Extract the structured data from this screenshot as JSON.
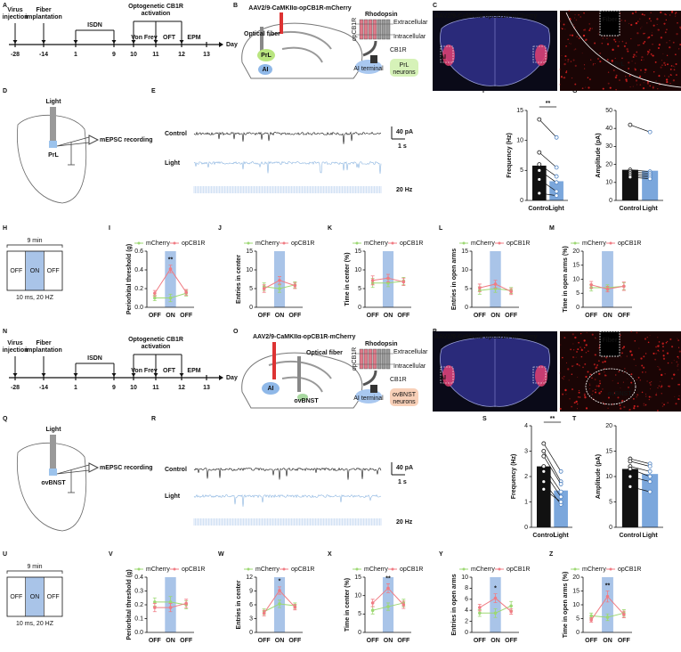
{
  "letters": [
    "A",
    "B",
    "C",
    "D",
    "E",
    "F",
    "G",
    "H",
    "I",
    "J",
    "K",
    "L",
    "M",
    "N",
    "O",
    "P",
    "Q",
    "R",
    "S",
    "T",
    "U",
    "V",
    "W",
    "X",
    "Y",
    "Z"
  ],
  "timelines": [
    {
      "labels": [
        "Virus injection",
        "Fiber implantation",
        "ISDN",
        "Optogenetic CB1R activation",
        "Von Frey",
        "OFT",
        "EPM"
      ],
      "days": [
        -28,
        -14,
        1,
        9,
        10,
        11,
        12,
        13
      ],
      "axis_label": "Day"
    },
    {
      "labels": [
        "Virus injection",
        "Fiber implantation",
        "ISDN",
        "Optogenetic CB1R activation",
        "Von Frey",
        "OFT",
        "EPM"
      ],
      "days": [
        -28,
        -14,
        1,
        9,
        10,
        11,
        12,
        13
      ],
      "axis_label": "Day"
    }
  ],
  "virus_diagrams": [
    {
      "virus": "AAV2/9-CaMKIIα-opCB1R-mCherry",
      "fiber": "Optical fiber",
      "region": "PrL",
      "source": "AI",
      "rhodopsin": "Rhodopsin",
      "extracellular": "Extracellular",
      "intracellular": "Intracellular",
      "receptor": "opCB1R",
      "cb1r": "CB1R",
      "terminal": "AI terminal",
      "target": "PrL neurons"
    },
    {
      "virus": "AAV2/9-CaMKIIα-opCB1R-mCherry",
      "fiber": "Optical fiber",
      "region": "ovBNST",
      "source": "AI",
      "rhodopsin": "Rhodopsin",
      "extracellular": "Extracellular",
      "intracellular": "Intracellular",
      "receptor": "opCB1R",
      "cb1r": "CB1R",
      "terminal": "AI terminal",
      "target": "ovBNST neurons"
    }
  ],
  "histology": [
    {
      "virus": "AAV2/9-CaMKIIα-opCB1R-mCherry",
      "ai": "AI",
      "fiber": "Fiber",
      "region": "PrL"
    },
    {
      "virus": "AAV2/9-CaMKIIα-opCB1R-mCherry",
      "ai": "AI",
      "fiber": "Fiber",
      "region": "ovBNST"
    }
  ],
  "recording_diagrams": [
    {
      "light": "Light",
      "region": "PrL",
      "recording": "mEPSC recording"
    },
    {
      "light": "Light",
      "region": "ovBNST",
      "recording": "mEPSC recording"
    }
  ],
  "traces": [
    {
      "rows": [
        "Control",
        "Light"
      ],
      "stim": "20 Hz",
      "scale_y": "40 pA",
      "scale_x": "1 s"
    },
    {
      "rows": [
        "Control",
        "Light"
      ],
      "stim": "20 Hz",
      "scale_y": "40 pA",
      "scale_x": "1 s"
    }
  ],
  "protocols": [
    {
      "duration": "9 min",
      "phases": [
        "OFF",
        "ON",
        "OFF"
      ],
      "stim": "10 ms, 20 HZ"
    },
    {
      "duration": "9 min",
      "phases": [
        "OFF",
        "ON",
        "OFF"
      ],
      "stim": "10 ms, 20 HZ"
    }
  ],
  "chart_data": [
    {
      "type": "bar",
      "ylabel": "Frequency (Hz)",
      "categories": [
        "Control",
        "Light"
      ],
      "values": [
        5.8,
        3.2
      ],
      "colors": [
        "#111111",
        "#7ba7dc"
      ],
      "pairs": [
        [
          13.5,
          10.5
        ],
        [
          8,
          5.5
        ],
        [
          6,
          4
        ],
        [
          5,
          3
        ],
        [
          3.5,
          1.5
        ],
        [
          1.2,
          0.8
        ]
      ],
      "ylim": [
        0,
        15
      ],
      "yticks": [
        0,
        5,
        10,
        15
      ],
      "significance": "**"
    },
    {
      "type": "bar",
      "ylabel": "Amplitude (pA)",
      "categories": [
        "Control",
        "Light"
      ],
      "values": [
        17,
        16.5
      ],
      "colors": [
        "#111111",
        "#7ba7dc"
      ],
      "pairs": [
        [
          42,
          38
        ],
        [
          17,
          16
        ],
        [
          16,
          15
        ],
        [
          15,
          14
        ],
        [
          14,
          13
        ],
        [
          13,
          12
        ]
      ],
      "ylim": [
        0,
        50
      ],
      "yticks": [
        0,
        10,
        20,
        30,
        40,
        50
      ]
    },
    {
      "type": "line",
      "ylabel": "Periorbital threshold (g)",
      "categories": [
        "OFF",
        "ON",
        "OFF"
      ],
      "series": [
        {
          "name": "mCherry",
          "color": "#9dd873",
          "values": [
            0.1,
            0.1,
            0.15
          ],
          "errors": [
            0.03,
            0.04,
            0.03
          ]
        },
        {
          "name": "opCB1R",
          "color": "#f07c84",
          "values": [
            0.15,
            0.41,
            0.16
          ],
          "errors": [
            0.03,
            0.04,
            0.03
          ]
        }
      ],
      "ylim": [
        0,
        0.6
      ],
      "yticks": [
        {
          "value": 0,
          "label": "0.0"
        },
        0.2,
        0.4,
        0.6
      ],
      "significance": "**"
    },
    {
      "type": "line",
      "ylabel": "Entries in center",
      "categories": [
        "OFF",
        "ON",
        "OFF"
      ],
      "series": [
        {
          "name": "mCherry",
          "color": "#9dd873",
          "values": [
            5.5,
            5,
            6
          ],
          "errors": [
            1,
            1,
            0.8
          ]
        },
        {
          "name": "opCB1R",
          "color": "#f07c84",
          "values": [
            5,
            7.2,
            5.8
          ],
          "errors": [
            1,
            1,
            0.8
          ]
        }
      ],
      "ylim": [
        0,
        15
      ],
      "yticks": [
        0,
        5,
        10,
        15
      ]
    },
    {
      "type": "line",
      "ylabel": "Time in center (%)",
      "categories": [
        "OFF",
        "ON",
        "OFF"
      ],
      "series": [
        {
          "name": "mCherry",
          "color": "#9dd873",
          "values": [
            6.5,
            6.5,
            7
          ],
          "errors": [
            1.2,
            1,
            1
          ]
        },
        {
          "name": "opCB1R",
          "color": "#f07c84",
          "values": [
            7.2,
            7.8,
            6.8
          ],
          "errors": [
            1.2,
            1,
            1
          ]
        }
      ],
      "ylim": [
        0,
        15
      ],
      "yticks": [
        0,
        5,
        10,
        15
      ]
    },
    {
      "type": "line",
      "ylabel": "Entries in open arms",
      "categories": [
        "OFF",
        "ON",
        "OFF"
      ],
      "series": [
        {
          "name": "mCherry",
          "color": "#9dd873",
          "values": [
            4.5,
            5,
            4.5
          ],
          "errors": [
            1,
            1,
            0.8
          ]
        },
        {
          "name": "opCB1R",
          "color": "#f07c84",
          "values": [
            5.2,
            6.2,
            4.2
          ],
          "errors": [
            1,
            1,
            0.8
          ]
        }
      ],
      "ylim": [
        0,
        15
      ],
      "yticks": [
        0,
        5,
        10,
        15
      ]
    },
    {
      "type": "line",
      "ylabel": "Time in open arms (%)",
      "categories": [
        "OFF",
        "ON",
        "OFF"
      ],
      "series": [
        {
          "name": "mCherry",
          "color": "#9dd873",
          "values": [
            7,
            7,
            7.5
          ],
          "errors": [
            1.2,
            1,
            1.2
          ]
        },
        {
          "name": "opCB1R",
          "color": "#f07c84",
          "values": [
            8,
            6.5,
            7.5
          ],
          "errors": [
            1.2,
            1,
            1.5
          ]
        }
      ],
      "ylim": [
        0,
        20
      ],
      "yticks": [
        0,
        5,
        10,
        15,
        20
      ]
    },
    {
      "type": "bar",
      "ylabel": "Frequency (Hz)",
      "categories": [
        "Control",
        "Light"
      ],
      "values": [
        2.4,
        1.45
      ],
      "colors": [
        "#111111",
        "#7ba7dc"
      ],
      "pairs": [
        [
          3.3,
          2.2
        ],
        [
          3,
          1.8
        ],
        [
          2.8,
          1.7
        ],
        [
          2.4,
          1.4
        ],
        [
          2.2,
          1.2
        ],
        [
          1.8,
          0.9
        ],
        [
          1.5,
          1
        ]
      ],
      "ylim": [
        0,
        4
      ],
      "yticks": [
        0,
        1,
        2,
        3,
        4
      ],
      "significance": "**"
    },
    {
      "type": "bar",
      "ylabel": "Amplitude (pA)",
      "categories": [
        "Control",
        "Light"
      ],
      "values": [
        11.5,
        10.5
      ],
      "colors": [
        "#111111",
        "#7ba7dc"
      ],
      "pairs": [
        [
          13.5,
          12.5
        ],
        [
          13,
          12
        ],
        [
          12,
          11
        ],
        [
          11.5,
          10
        ],
        [
          10,
          9
        ],
        [
          8,
          7
        ]
      ],
      "ylim": [
        0,
        20
      ],
      "yticks": [
        0,
        5,
        10,
        15,
        20
      ]
    },
    {
      "type": "line",
      "ylabel": "Periorbital threshold (g)",
      "categories": [
        "OFF",
        "ON",
        "OFF"
      ],
      "series": [
        {
          "name": "mCherry",
          "color": "#9dd873",
          "values": [
            0.22,
            0.22,
            0.2
          ],
          "errors": [
            0.03,
            0.04,
            0.03
          ]
        },
        {
          "name": "opCB1R",
          "color": "#f07c84",
          "values": [
            0.18,
            0.18,
            0.21
          ],
          "errors": [
            0.03,
            0.03,
            0.03
          ]
        }
      ],
      "ylim": [
        0,
        0.4
      ],
      "yticks": [
        {
          "value": 0,
          "label": "0.0"
        },
        0.1,
        0.2,
        0.3,
        0.4
      ]
    },
    {
      "type": "line",
      "ylabel": "Entries in center",
      "categories": [
        "OFF",
        "ON",
        "OFF"
      ],
      "series": [
        {
          "name": "mCherry",
          "color": "#9dd873",
          "values": [
            4.5,
            6.2,
            5.8
          ],
          "errors": [
            0.6,
            0.8,
            0.6
          ]
        },
        {
          "name": "opCB1R",
          "color": "#f07c84",
          "values": [
            4.2,
            9.1,
            5.5
          ],
          "errors": [
            0.6,
            0.8,
            0.6
          ]
        }
      ],
      "ylim": [
        0,
        12
      ],
      "yticks": [
        0,
        3,
        6,
        9,
        12
      ],
      "significance": "*"
    },
    {
      "type": "line",
      "ylabel": "Time in center (%)",
      "categories": [
        "OFF",
        "ON",
        "OFF"
      ],
      "series": [
        {
          "name": "mCherry",
          "color": "#9dd873",
          "values": [
            6,
            7,
            8
          ],
          "errors": [
            1,
            1,
            1
          ]
        },
        {
          "name": "opCB1R",
          "color": "#f07c84",
          "values": [
            8,
            12,
            7.5
          ],
          "errors": [
            1,
            1.2,
            1
          ]
        }
      ],
      "ylim": [
        0,
        15
      ],
      "yticks": [
        0,
        5,
        10,
        15
      ],
      "significance": "**"
    },
    {
      "type": "line",
      "ylabel": "Entries in open arms",
      "categories": [
        "OFF",
        "ON",
        "OFF"
      ],
      "series": [
        {
          "name": "mCherry",
          "color": "#9dd873",
          "values": [
            3.5,
            3.5,
            4.8
          ],
          "errors": [
            0.6,
            0.8,
            0.8
          ]
        },
        {
          "name": "opCB1R",
          "color": "#f07c84",
          "values": [
            4.5,
            6.2,
            3.8
          ],
          "errors": [
            0.6,
            0.8,
            0.5
          ]
        }
      ],
      "ylim": [
        0,
        10
      ],
      "yticks": [
        0,
        2,
        4,
        6,
        8,
        10
      ],
      "significance": "*"
    },
    {
      "type": "line",
      "ylabel": "Time in open arms (%)",
      "categories": [
        "OFF",
        "ON",
        "OFF"
      ],
      "series": [
        {
          "name": "mCherry",
          "color": "#9dd873",
          "values": [
            6,
            5.5,
            7
          ],
          "errors": [
            1,
            1.2,
            1.2
          ]
        },
        {
          "name": "opCB1R",
          "color": "#f07c84",
          "values": [
            4.5,
            13,
            6.5
          ],
          "errors": [
            0.8,
            2,
            1.2
          ]
        }
      ],
      "ylim": [
        0,
        20
      ],
      "yticks": [
        0,
        5,
        10,
        15,
        20
      ],
      "significance": "**"
    }
  ]
}
